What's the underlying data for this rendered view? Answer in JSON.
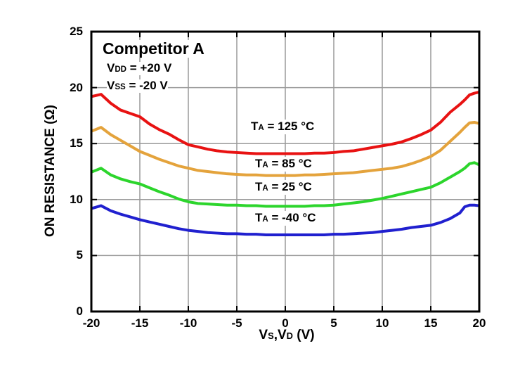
{
  "annotations": {
    "title": "Competitor A",
    "vdd": {
      "pre": "V",
      "sub": "DD",
      "post": " = +20 V"
    },
    "vss": {
      "pre": "V",
      "sub": "SS",
      "post": " = -20 V"
    },
    "curve_labels": [
      {
        "pre": "T",
        "sub": "A",
        "post": " = 125 °C"
      },
      {
        "pre": "T",
        "sub": "A",
        "post": " = 85 °C"
      },
      {
        "pre": "T",
        "sub": "A",
        "post": " = 25 °C"
      },
      {
        "pre": "T",
        "sub": "A",
        "post": " = -40 °C"
      }
    ]
  },
  "xaxis": {
    "v1": "V",
    "s1": "S",
    "comma": ",",
    "v2": "V",
    "s2": "D",
    "unit": " (V)"
  },
  "yaxis": {
    "label": "ON RESISTANCE (Ω)"
  },
  "chart_data": {
    "type": "line",
    "title": "Competitor A",
    "conditions": [
      "VDD = +20 V",
      "VSS = -20 V"
    ],
    "xlabel": "VS,VD (V)",
    "ylabel": "ON RESISTANCE (Ω)",
    "xlim": [
      -20,
      20
    ],
    "ylim": [
      0,
      25
    ],
    "xticks": [
      -20,
      -15,
      -10,
      -5,
      0,
      5,
      10,
      15,
      20
    ],
    "yticks": [
      0,
      5,
      10,
      15,
      20,
      25
    ],
    "grid": true,
    "colors": {
      "grid": "#9a9a9a",
      "axis": "#000000",
      "background": "#ffffff"
    },
    "x": [
      -20,
      -19,
      -18,
      -17,
      -16,
      -15,
      -14,
      -13,
      -12,
      -11,
      -10,
      -9,
      -8,
      -7,
      -6,
      -5,
      -4,
      -3,
      -2,
      -1,
      0,
      1,
      2,
      3,
      4,
      5,
      6,
      7,
      8,
      9,
      10,
      11,
      12,
      13,
      14,
      15,
      16,
      17,
      18,
      18.5,
      19,
      19.5,
      20
    ],
    "series": [
      {
        "name": "TA = 125 °C",
        "temp_c": 125,
        "color": "#e81212",
        "values": [
          19.2,
          19.4,
          18.6,
          18.0,
          17.7,
          17.4,
          16.75,
          16.25,
          15.85,
          15.35,
          14.9,
          14.7,
          14.5,
          14.35,
          14.25,
          14.2,
          14.15,
          14.1,
          14.1,
          14.1,
          14.1,
          14.1,
          14.1,
          14.15,
          14.15,
          14.2,
          14.3,
          14.35,
          14.5,
          14.65,
          14.8,
          14.95,
          15.15,
          15.45,
          15.8,
          16.2,
          16.9,
          17.8,
          18.5,
          18.9,
          19.35,
          19.5,
          19.6
        ]
      },
      {
        "name": "TA = 85 °C",
        "temp_c": 85,
        "color": "#e4a33c",
        "values": [
          16.1,
          16.45,
          15.8,
          15.3,
          14.8,
          14.3,
          13.95,
          13.6,
          13.3,
          13.0,
          12.8,
          12.6,
          12.5,
          12.4,
          12.3,
          12.25,
          12.2,
          12.2,
          12.15,
          12.15,
          12.15,
          12.15,
          12.2,
          12.2,
          12.25,
          12.3,
          12.35,
          12.4,
          12.5,
          12.6,
          12.7,
          12.8,
          12.95,
          13.2,
          13.5,
          13.85,
          14.4,
          15.2,
          16.0,
          16.45,
          16.85,
          16.9,
          16.8
        ]
      },
      {
        "name": "TA = 25 °C",
        "temp_c": 25,
        "color": "#2cd52c",
        "values": [
          12.45,
          12.8,
          12.2,
          11.85,
          11.6,
          11.4,
          11.05,
          10.7,
          10.4,
          10.05,
          9.8,
          9.65,
          9.6,
          9.55,
          9.5,
          9.5,
          9.45,
          9.45,
          9.4,
          9.4,
          9.4,
          9.4,
          9.4,
          9.45,
          9.45,
          9.5,
          9.6,
          9.7,
          9.8,
          9.95,
          10.1,
          10.3,
          10.5,
          10.7,
          10.9,
          11.1,
          11.5,
          12.0,
          12.5,
          12.8,
          13.2,
          13.3,
          13.1
        ]
      },
      {
        "name": "TA = -40 °C",
        "temp_c": -40,
        "color": "#2020cf",
        "values": [
          9.2,
          9.45,
          9.0,
          8.7,
          8.45,
          8.2,
          8.0,
          7.8,
          7.6,
          7.4,
          7.25,
          7.15,
          7.05,
          7.0,
          6.95,
          6.95,
          6.9,
          6.9,
          6.85,
          6.85,
          6.85,
          6.85,
          6.85,
          6.85,
          6.85,
          6.9,
          6.9,
          6.95,
          7.0,
          7.05,
          7.15,
          7.25,
          7.35,
          7.5,
          7.6,
          7.7,
          7.95,
          8.3,
          8.8,
          9.35,
          9.5,
          9.5,
          9.45
        ]
      }
    ],
    "legend_position": "inline-labels"
  }
}
